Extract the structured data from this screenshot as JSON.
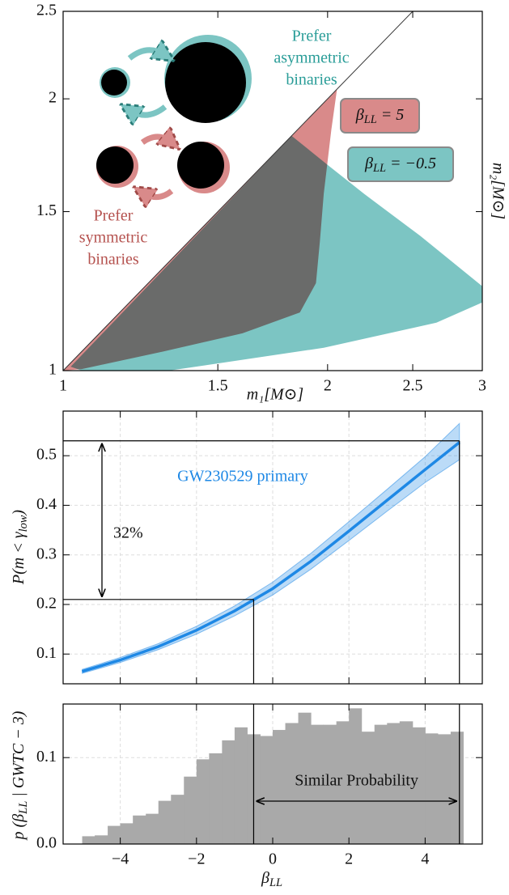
{
  "chart_data": [
    {
      "type": "region",
      "xscale": "log",
      "yscale": "log",
      "xlim": [
        1,
        3
      ],
      "ylim": [
        1,
        2.5
      ],
      "xticks": [
        1,
        1.5,
        2,
        2.5,
        3
      ],
      "yticks": [
        1,
        1.5,
        2,
        2.5
      ],
      "xlabel": "m₁[M⊙]",
      "ylabel": "m₂[M⊙]",
      "reference_line": {
        "x": [
          1,
          2.5
        ],
        "y": [
          1,
          2.5
        ]
      },
      "series": [
        {
          "name": [
            "β",
            "LL",
            " = 5"
          ],
          "color": "#d98a8a",
          "x": [
            1.0,
            1.82,
            2.05,
            2.02,
            1.98,
            1.96,
            1.94,
            1.86,
            1.6,
            1.3,
            1.05,
            1.0
          ],
          "y": [
            1.0,
            1.82,
            2.05,
            1.85,
            1.57,
            1.39,
            1.25,
            1.16,
            1.1,
            1.05,
            1.004,
            1.0
          ]
        },
        {
          "name": [
            "β",
            "LL",
            " = −0.5"
          ],
          "color": "#7cc5c3",
          "x": [
            1.02,
            1.82,
            2.0,
            2.2,
            2.55,
            3.0,
            3.0,
            2.66,
            1.98,
            1.32,
            1.05
          ],
          "y": [
            1.01,
            1.82,
            1.69,
            1.57,
            1.41,
            1.24,
            1.19,
            1.13,
            1.06,
            1.0,
            1.0
          ]
        }
      ],
      "annotations": [
        {
          "lines": [
            "Prefer",
            "symmetric",
            "binaries"
          ],
          "color": "#b5524f"
        },
        {
          "lines": [
            "Prefer",
            "asymmetric",
            "binaries"
          ],
          "color": "#2a9d98"
        }
      ]
    },
    {
      "type": "line",
      "xlim": [
        -5.5,
        5.5
      ],
      "ylim": [
        0.04,
        0.59
      ],
      "grid": true,
      "xticklabels": false,
      "xticks": [
        -4,
        -2,
        0,
        2,
        4
      ],
      "yticks": [
        0.1,
        0.2,
        0.3,
        0.4,
        0.5
      ],
      "ylabel": [
        "P(m < γ",
        "low",
        ")"
      ],
      "series": [
        {
          "name": "GW230529 primary",
          "color": "#1e88e5",
          "x": [
            -5,
            -4,
            -3,
            -2,
            -1,
            0,
            1,
            2,
            3,
            4,
            4.9
          ],
          "values": [
            0.065,
            0.088,
            0.115,
            0.148,
            0.187,
            0.232,
            0.287,
            0.348,
            0.41,
            0.472,
            0.527
          ],
          "lower": [
            0.061,
            0.083,
            0.109,
            0.14,
            0.177,
            0.219,
            0.271,
            0.329,
            0.388,
            0.446,
            0.492
          ],
          "upper": [
            0.069,
            0.093,
            0.121,
            0.156,
            0.197,
            0.245,
            0.303,
            0.367,
            0.432,
            0.498,
            0.565
          ]
        }
      ],
      "markers": [
        {
          "x": -0.5,
          "y": 0.21
        },
        {
          "x": 4.9,
          "y": 0.53
        }
      ],
      "annotation": "32%"
    },
    {
      "type": "histogram",
      "xlim": [
        -5.5,
        5.5
      ],
      "ylim": [
        0,
        0.162
      ],
      "grid": true,
      "color": "#a9a9a9",
      "xticks": [
        {
          "value": -4,
          "label": "−4"
        },
        {
          "value": -2,
          "label": "−2"
        },
        0,
        2,
        4
      ],
      "yticks": [
        {
          "value": 0,
          "label": "0.0"
        },
        0.1
      ],
      "xlabel": [
        "β",
        "LL"
      ],
      "ylabel": [
        "p (β",
        "LL",
        " | GWTC − 3)"
      ],
      "bins": [
        -5,
        -4.67,
        -4.33,
        -4,
        -3.67,
        -3.33,
        -3,
        -2.67,
        -2.33,
        -2,
        -1.67,
        -1.33,
        -1,
        -0.67,
        -0.33,
        0,
        0.33,
        0.67,
        1,
        1.33,
        1.67,
        2,
        2.33,
        2.67,
        3,
        3.33,
        3.67,
        4,
        4.33,
        4.67,
        5
      ],
      "values": [
        0.009,
        0.01,
        0.021,
        0.024,
        0.033,
        0.035,
        0.05,
        0.057,
        0.078,
        0.098,
        0.105,
        0.12,
        0.135,
        0.127,
        0.125,
        0.132,
        0.14,
        0.152,
        0.138,
        0.138,
        0.142,
        0.157,
        0.13,
        0.138,
        0.14,
        0.142,
        0.135,
        0.128,
        0.127,
        0.13
      ],
      "markers": [
        {
          "x": -0.5
        },
        {
          "x": 4.9
        }
      ],
      "annotation": "Similar Probability"
    }
  ]
}
